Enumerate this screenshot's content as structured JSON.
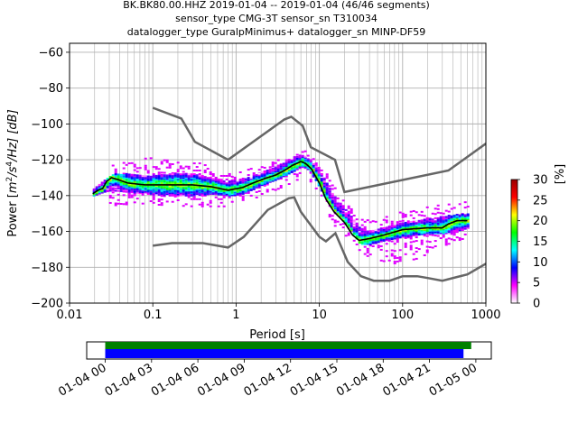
{
  "chart_data": {
    "type": "heatmap",
    "title_lines": [
      "BK.BK80.00.HHZ   2019-01-04 -- 2019-01-04  (46/46 segments)",
      "sensor_type CMG-3T sensor_sn T310034",
      "datalogger_type GuralpMinimus+ datalogger_sn MINP-DF59"
    ],
    "xlabel": "Period [s]",
    "ylabel_parts": {
      "prefix": "Power [",
      "m": "m",
      "sup1": "2",
      "mid": "/s",
      "sup2": "4",
      "suffix": "/Hz] [dB]"
    },
    "xscale": "log",
    "xlim": [
      0.01,
      1000
    ],
    "ylim": [
      -200,
      -55
    ],
    "x_ticks": [
      0.01,
      0.1,
      1,
      10,
      100,
      1000
    ],
    "x_tick_labels": [
      "0.01",
      "0.1",
      "1",
      "10",
      "100",
      "1000"
    ],
    "y_ticks": [
      -200,
      -180,
      -160,
      -140,
      -120,
      -100,
      -80,
      -60
    ],
    "y_tick_labels": [
      "−200",
      "−180",
      "−160",
      "−140",
      "−120",
      "−100",
      "−80",
      "−60"
    ],
    "grid": true,
    "colorbar": {
      "label": "[%]",
      "range": [
        0,
        30
      ],
      "ticks": [
        0,
        5,
        10,
        15,
        20,
        25,
        30
      ],
      "colors": [
        "#ffffff",
        "#ff00ff",
        "#0000ff",
        "#00ffff",
        "#00ff00",
        "#ffff00",
        "#ff0000",
        "#990000"
      ]
    },
    "noise_model_color": "#666666",
    "nhnm": [
      [
        0.1,
        -91
      ],
      [
        0.22,
        -97
      ],
      [
        0.32,
        -110
      ],
      [
        0.8,
        -120
      ],
      [
        3.8,
        -97.5
      ],
      [
        4.6,
        -96
      ],
      [
        6.3,
        -101
      ],
      [
        7.9,
        -113
      ],
      [
        15.4,
        -120
      ],
      [
        20,
        -138
      ],
      [
        354.8,
        -126
      ],
      [
        1000,
        -111
      ]
    ],
    "nlnm": [
      [
        0.1,
        -168
      ],
      [
        0.17,
        -166.5
      ],
      [
        0.4,
        -166.5
      ],
      [
        0.8,
        -169
      ],
      [
        1.24,
        -163
      ],
      [
        2.4,
        -148
      ],
      [
        4.3,
        -141.5
      ],
      [
        5,
        -141
      ],
      [
        6,
        -149
      ],
      [
        10,
        -163
      ],
      [
        12,
        -165.5
      ],
      [
        15.6,
        -161
      ],
      [
        21.9,
        -177
      ],
      [
        31.6,
        -185
      ],
      [
        45,
        -187.5
      ],
      [
        70,
        -187.5
      ],
      [
        100,
        -185
      ],
      [
        150,
        -185
      ],
      [
        200,
        -186
      ],
      [
        300,
        -187.5
      ],
      [
        600,
        -184
      ],
      [
        1000,
        -178
      ]
    ],
    "mode_line_color": "#000000",
    "mode_line": [
      [
        0.019,
        -139
      ],
      [
        0.022,
        -137
      ],
      [
        0.025,
        -136
      ],
      [
        0.028,
        -132
      ],
      [
        0.032,
        -130
      ],
      [
        0.038,
        -131
      ],
      [
        0.05,
        -133
      ],
      [
        0.08,
        -134
      ],
      [
        0.15,
        -134
      ],
      [
        0.3,
        -134
      ],
      [
        0.5,
        -135
      ],
      [
        0.8,
        -137
      ],
      [
        1.2,
        -135.5
      ],
      [
        1.6,
        -133
      ],
      [
        2.2,
        -130.5
      ],
      [
        3,
        -128.5
      ],
      [
        3.8,
        -126
      ],
      [
        4.8,
        -123
      ],
      [
        6,
        -121
      ],
      [
        6.8,
        -122
      ],
      [
        8,
        -125
      ],
      [
        10,
        -133
      ],
      [
        12,
        -142
      ],
      [
        15,
        -149
      ],
      [
        20,
        -155
      ],
      [
        25,
        -162
      ],
      [
        30,
        -165
      ],
      [
        40,
        -164
      ],
      [
        60,
        -162
      ],
      [
        100,
        -159
      ],
      [
        200,
        -158
      ],
      [
        300,
        -158
      ],
      [
        350,
        -156
      ],
      [
        450,
        -154
      ],
      [
        600,
        -154
      ]
    ],
    "density_band": [
      [
        0.019,
        -140,
        -136
      ],
      [
        0.025,
        -138,
        -132
      ],
      [
        0.032,
        -137,
        -128
      ],
      [
        0.05,
        -138,
        -128
      ],
      [
        0.08,
        -139,
        -129
      ],
      [
        0.15,
        -140,
        -128
      ],
      [
        0.3,
        -140,
        -128
      ],
      [
        0.5,
        -139,
        -130
      ],
      [
        0.8,
        -140,
        -132
      ],
      [
        1.2,
        -139,
        -131
      ],
      [
        2,
        -134,
        -127
      ],
      [
        3,
        -131,
        -124
      ],
      [
        4.5,
        -127,
        -119
      ],
      [
        6,
        -124,
        -117
      ],
      [
        7,
        -125,
        -119
      ],
      [
        9,
        -132,
        -124
      ],
      [
        11,
        -140,
        -130
      ],
      [
        14,
        -147,
        -139
      ],
      [
        18,
        -153,
        -145
      ],
      [
        24,
        -160,
        -152
      ],
      [
        30,
        -167,
        -158
      ],
      [
        40,
        -167,
        -160
      ],
      [
        60,
        -165,
        -158
      ],
      [
        100,
        -163,
        -155
      ],
      [
        200,
        -161,
        -153
      ],
      [
        350,
        -161,
        -151
      ],
      [
        600,
        -158,
        -150
      ]
    ],
    "outlier_band": [
      [
        0.028,
        -145,
        -124
      ],
      [
        0.05,
        -146,
        -120
      ],
      [
        0.1,
        -145,
        -119
      ],
      [
        0.3,
        -146,
        -121
      ],
      [
        0.8,
        -146,
        -127
      ],
      [
        2,
        -140,
        -124
      ],
      [
        4,
        -134,
        -118
      ],
      [
        6.5,
        -129,
        -115
      ],
      [
        10,
        -143,
        -122
      ],
      [
        15,
        -157,
        -135
      ],
      [
        25,
        -168,
        -148
      ],
      [
        40,
        -175,
        -154
      ],
      [
        80,
        -178,
        -150
      ],
      [
        150,
        -175,
        -147
      ],
      [
        300,
        -168,
        -145
      ],
      [
        600,
        -163,
        -142
      ]
    ]
  },
  "timeline": {
    "tick_labels": [
      "01-04 00",
      "01-04 03",
      "01-04 06",
      "01-04 09",
      "01-04 12",
      "01-04 15",
      "01-04 18",
      "01-04 21",
      "01-05 00"
    ],
    "range_hours": [
      -1.2,
      25
    ],
    "green_bar_hours": [
      0,
      23.7
    ],
    "blue_bar_hours": [
      0,
      23.2
    ],
    "green_color": "#008000",
    "blue_color": "#0000ff"
  }
}
